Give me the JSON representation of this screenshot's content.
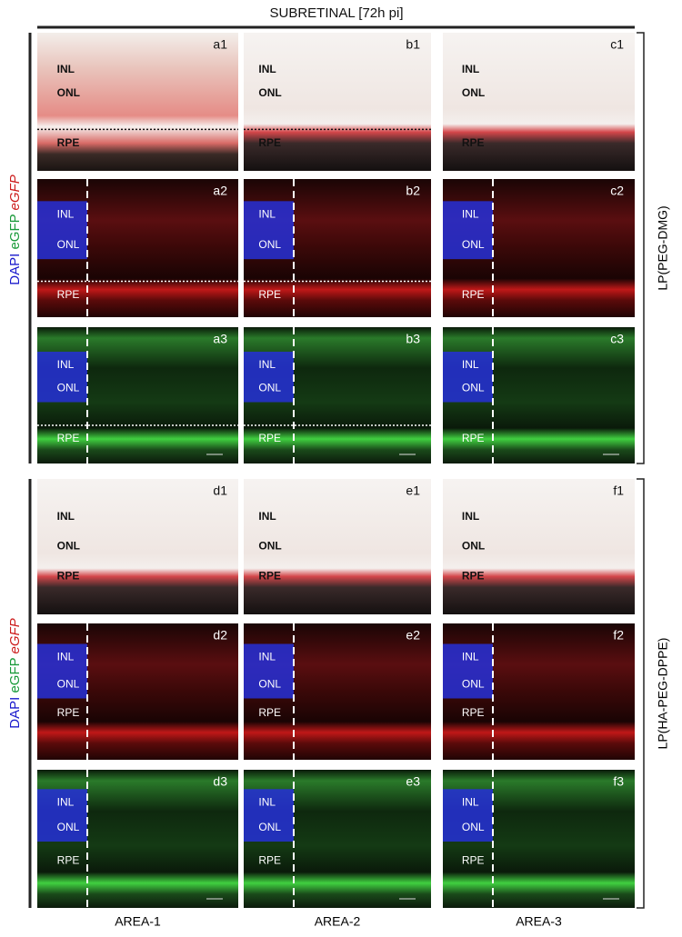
{
  "header": {
    "title": "SUBRETINAL [72h pi]"
  },
  "stain_label": [
    {
      "text": "DAPI",
      "color": "#1a1acc"
    },
    {
      "text": "eGFP",
      "color": "#1a9a3a"
    },
    {
      "text": "eGFP",
      "color": "#cc1a1a"
    }
  ],
  "groups": [
    {
      "side_label": "LP(PEG-DMG)",
      "rows": [
        [
          {
            "id": "a1",
            "layers": [
              "INL",
              "ONL",
              "RPE"
            ]
          },
          {
            "id": "b1",
            "layers": [
              "INL",
              "ONL",
              "RPE"
            ]
          },
          {
            "id": "c1",
            "layers": [
              "INL",
              "ONL",
              "RPE"
            ]
          }
        ],
        [
          {
            "id": "a2",
            "layers": [
              "INL",
              "ONL",
              "RPE"
            ]
          },
          {
            "id": "b2",
            "layers": [
              "INL",
              "ONL",
              "RPE"
            ]
          },
          {
            "id": "c2",
            "layers": [
              "INL",
              "ONL",
              "RPE"
            ]
          }
        ],
        [
          {
            "id": "a3",
            "layers": [
              "INL",
              "ONL",
              "RPE"
            ]
          },
          {
            "id": "b3",
            "layers": [
              "INL",
              "ONL",
              "RPE"
            ]
          },
          {
            "id": "c3",
            "layers": [
              "INL",
              "ONL",
              "RPE"
            ]
          }
        ]
      ]
    },
    {
      "side_label": "LP(HA-PEG-DPPE)",
      "rows": [
        [
          {
            "id": "d1",
            "layers": [
              "INL",
              "ONL",
              "RPE"
            ]
          },
          {
            "id": "e1",
            "layers": [
              "INL",
              "ONL",
              "RPE"
            ]
          },
          {
            "id": "f1",
            "layers": [
              "INL",
              "ONL",
              "RPE"
            ]
          }
        ],
        [
          {
            "id": "d2",
            "layers": [
              "INL",
              "ONL",
              "RPE"
            ]
          },
          {
            "id": "e2",
            "layers": [
              "INL",
              "ONL",
              "RPE"
            ]
          },
          {
            "id": "f2",
            "layers": [
              "INL",
              "ONL",
              "RPE"
            ]
          }
        ],
        [
          {
            "id": "d3",
            "layers": [
              "INL",
              "ONL",
              "RPE"
            ]
          },
          {
            "id": "e3",
            "layers": [
              "INL",
              "ONL",
              "RPE"
            ]
          },
          {
            "id": "f3",
            "layers": [
              "INL",
              "ONL",
              "RPE"
            ]
          }
        ]
      ]
    }
  ],
  "columns": [
    "AREA-1",
    "AREA-2",
    "AREA-3"
  ]
}
